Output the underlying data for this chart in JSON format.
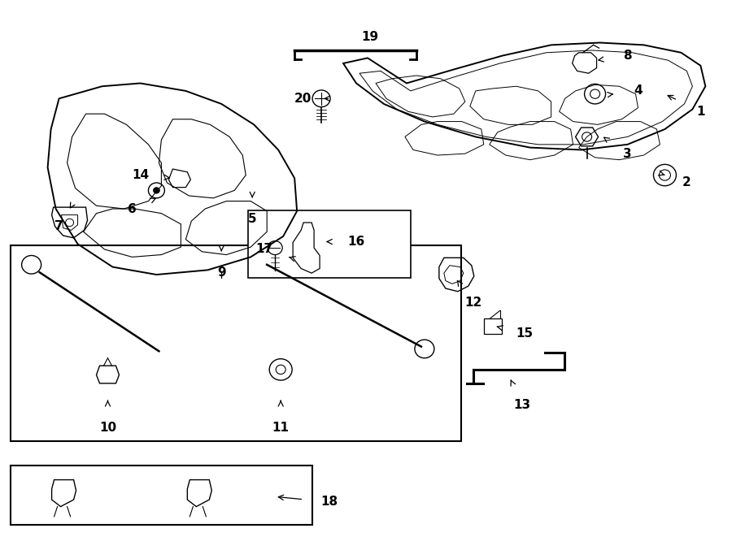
{
  "background_color": "#ffffff",
  "line_color": "#000000",
  "fig_width": 9.0,
  "fig_height": 6.61,
  "dpi": 100,
  "parts_info": [
    [
      1,
      8.62,
      5.55,
      8.18,
      5.78
    ],
    [
      2,
      8.45,
      4.62,
      8.18,
      4.72
    ],
    [
      3,
      7.72,
      5.0,
      7.42,
      5.22
    ],
    [
      4,
      7.85,
      5.82,
      7.55,
      5.78
    ],
    [
      5,
      3.1,
      4.15,
      3.1,
      4.42
    ],
    [
      6,
      1.62,
      4.28,
      1.92,
      4.42
    ],
    [
      7,
      0.72,
      4.05,
      0.85,
      4.28
    ],
    [
      8,
      7.72,
      6.28,
      7.35,
      6.22
    ],
    [
      9,
      2.72,
      3.45,
      2.72,
      3.72
    ],
    [
      10,
      1.32,
      1.42,
      1.32,
      1.78
    ],
    [
      11,
      3.45,
      1.42,
      3.45,
      1.78
    ],
    [
      12,
      5.82,
      3.05,
      5.62,
      3.35
    ],
    [
      13,
      6.42,
      1.72,
      6.28,
      2.05
    ],
    [
      14,
      1.72,
      4.72,
      2.12,
      4.68
    ],
    [
      15,
      6.45,
      2.65,
      6.08,
      2.75
    ],
    [
      16,
      4.38,
      3.85,
      3.98,
      3.85
    ],
    [
      17,
      3.25,
      3.75,
      3.55,
      3.65
    ],
    [
      18,
      4.05,
      0.45,
      3.38,
      0.52
    ],
    [
      19,
      4.55,
      6.52,
      4.55,
      6.35
    ],
    [
      20,
      3.72,
      5.72,
      3.95,
      5.72
    ]
  ]
}
